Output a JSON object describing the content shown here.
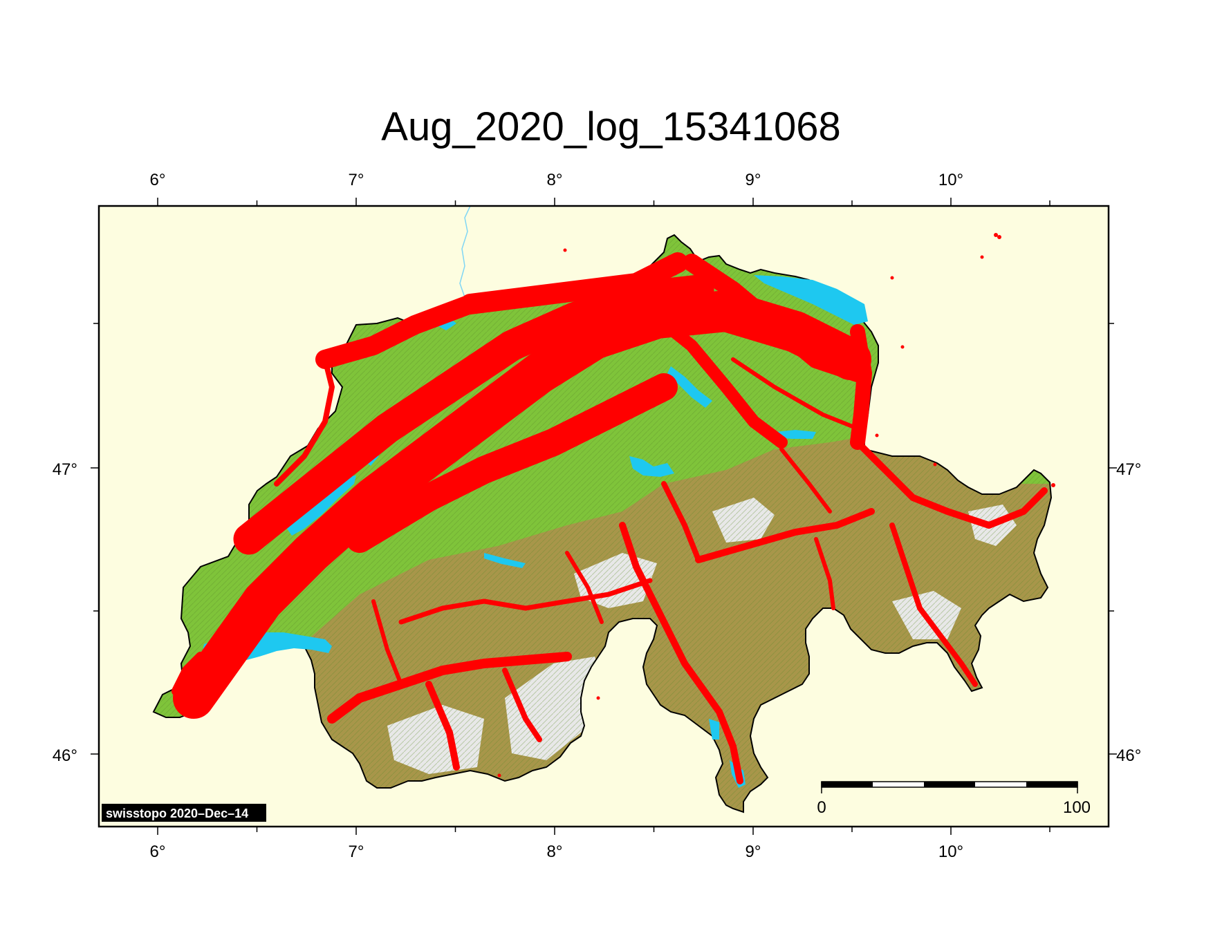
{
  "title": "Aug_2020_log_15341068",
  "credit": "swisstopo 2020–Dec–14",
  "longitude_ticks": [
    "6°",
    "7°",
    "8°",
    "9°",
    "10°"
  ],
  "latitude_ticks": [
    "47°",
    "46°"
  ],
  "scale_bar": {
    "start_label": "0",
    "end_label": "100",
    "segments": 5
  },
  "colors": {
    "background": "#fdfde0",
    "lowland": "#7fc43a",
    "highland": "#a8964a",
    "alpine": "#e8e8e8",
    "lake": "#1ec8f0",
    "track": "#ff0000",
    "frame": "#000000"
  }
}
